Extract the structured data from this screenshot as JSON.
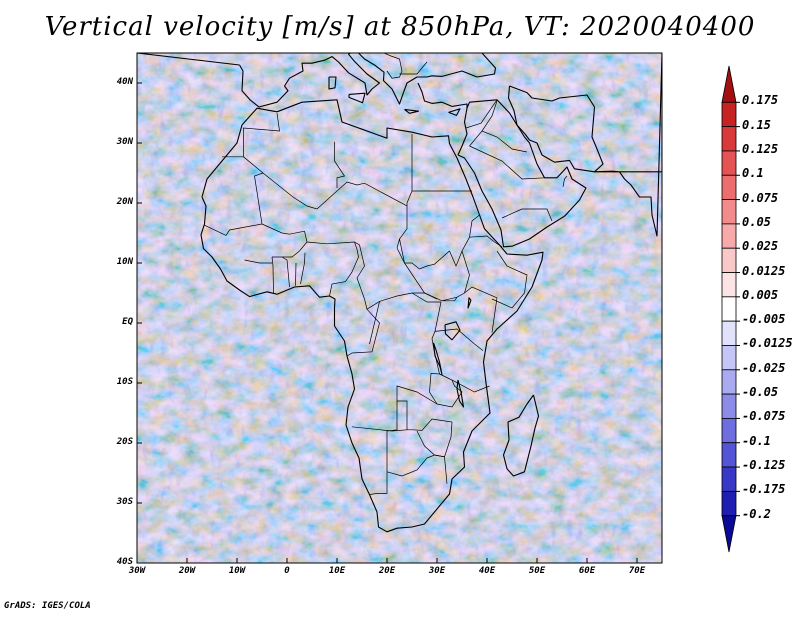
{
  "title": "Vertical velocity [m/s] at 850hPa, VT: 2020040400",
  "credit": "GrADS: IGES/COLA",
  "axes": {
    "lat_labels": [
      "40N",
      "30N",
      "20N",
      "10N",
      "EQ",
      "10S",
      "20S",
      "30S",
      "40S"
    ],
    "lat_values": [
      40,
      30,
      20,
      10,
      0,
      -10,
      -20,
      -30,
      -40
    ],
    "lon_labels": [
      "30W",
      "20W",
      "10W",
      "0",
      "10E",
      "20E",
      "30E",
      "40E",
      "50E",
      "60E",
      "70E"
    ],
    "lon_values": [
      -30,
      -20,
      -10,
      0,
      10,
      20,
      30,
      40,
      50,
      60,
      70
    ]
  },
  "colorbar": {
    "labels": [
      "0.175",
      "0.15",
      "0.125",
      "0.1",
      "0.075",
      "0.05",
      "0.025",
      "0.0125",
      "0.005",
      "-0.005",
      "-0.0125",
      "-0.025",
      "-0.05",
      "-0.075",
      "-0.1",
      "-0.125",
      "-0.175",
      "-0.2"
    ],
    "colors": [
      "#a50f0f",
      "#c62323",
      "#d83a3a",
      "#e45454",
      "#ec6e6e",
      "#f28c8c",
      "#f6aaaa",
      "#f9c8c8",
      "#fce4e4",
      "#ffffff",
      "#e2e2fb",
      "#c6c6f6",
      "#aaaaf0",
      "#8c8ce8",
      "#6e6ee0",
      "#5454d6",
      "#3838c6",
      "#1e1eb0",
      "#0a0a96"
    ]
  },
  "legend_colors": {
    "positive": "#c62323",
    "negative": "#3838c6",
    "land_border": "#000000"
  }
}
